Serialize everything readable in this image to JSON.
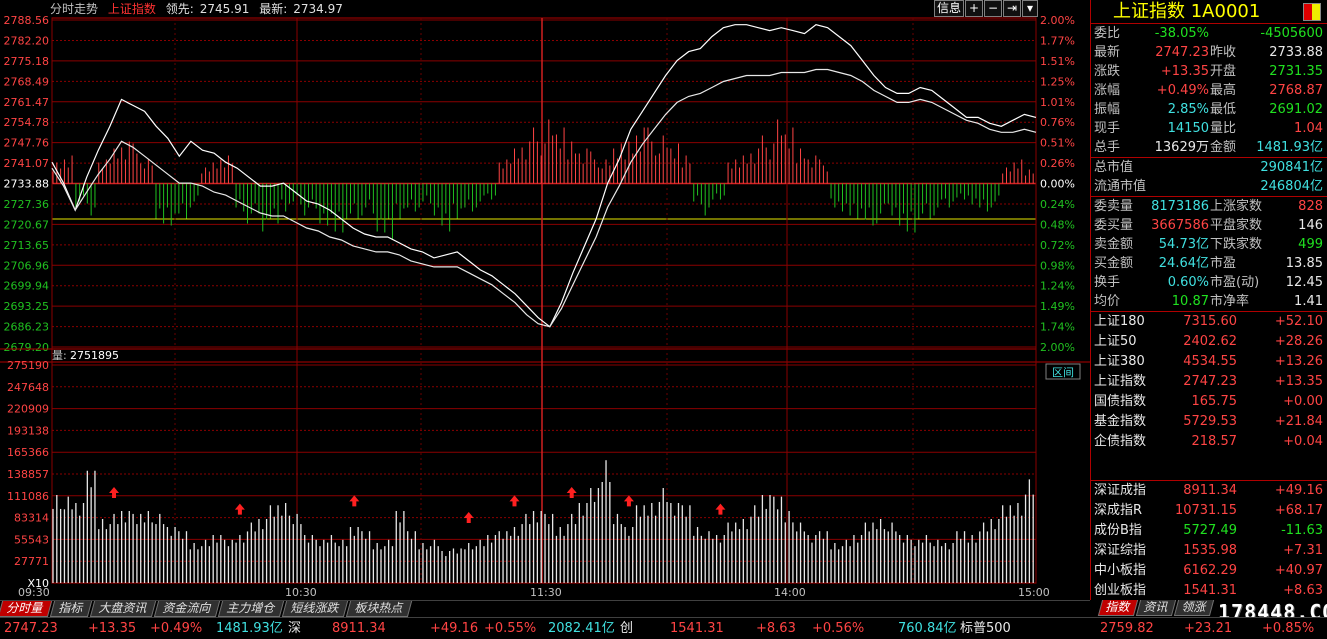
{
  "header": {
    "view": "分时走势",
    "index_name": "上证指数",
    "lead_label": "领先:",
    "lead_value": "2745.91",
    "latest_label": "最新:",
    "latest_value": "2734.97"
  },
  "toolbar": {
    "info": "信息",
    "plus": "+",
    "minus": "−",
    "arrow": "⇥",
    "menu": "▾"
  },
  "volume_header": {
    "label": "量:",
    "value": "2751895"
  },
  "interval_label": "区间",
  "price_axis": {
    "left_labels": [
      "2788.56",
      "2782.20",
      "2775.18",
      "2768.49",
      "2761.47",
      "2754.78",
      "2747.76",
      "2741.07",
      "2733.88",
      "2727.36",
      "2720.67",
      "2713.65",
      "2706.96",
      "2699.94",
      "2693.25",
      "2686.23",
      "2679.20"
    ],
    "right_labels": [
      "2.00%",
      "1.77%",
      "1.51%",
      "1.25%",
      "1.01%",
      "0.76%",
      "0.51%",
      "0.26%",
      "0.00%",
      "0.24%",
      "0.48%",
      "0.72%",
      "0.98%",
      "1.24%",
      "1.49%",
      "1.74%",
      "2.00%"
    ],
    "prev_close": 2733.88
  },
  "volume_axis": {
    "labels": [
      "275190",
      "247648",
      "220909",
      "193138",
      "165366",
      "138857",
      "111086",
      "83314",
      "55543",
      "27771",
      "X10"
    ]
  },
  "time_axis": {
    "labels": [
      "09:30",
      "10:30",
      "11:30",
      "14:00",
      "15:00"
    ]
  },
  "chart_data": {
    "type": "line",
    "series": [
      {
        "values": [
          2741,
          2734,
          2725,
          2736,
          2745,
          2753,
          2762,
          2760,
          2758,
          2753,
          2749,
          2743,
          2748,
          2745,
          2744,
          2741,
          2739,
          2736,
          2733,
          2733,
          2734,
          2731,
          2728,
          2727,
          2725,
          2722,
          2719,
          2717,
          2716,
          2716,
          2714,
          2712,
          2711,
          2709,
          2710,
          2711,
          2708,
          2705,
          2703,
          2700,
          2697,
          2693,
          2689,
          2686,
          2694,
          2704,
          2713,
          2722,
          2734,
          2742,
          2752,
          2758,
          2764,
          2770,
          2775,
          2778,
          2779,
          2783,
          2786,
          2787,
          2787,
          2786,
          2785,
          2786,
          2785,
          2784,
          2787,
          2786,
          2783,
          2780,
          2775,
          2770,
          2766,
          2764,
          2764,
          2766,
          2765,
          2762,
          2759,
          2756,
          2756,
          2754,
          2753,
          2755,
          2757,
          2756
        ]
      },
      {
        "values": [
          2739,
          2733,
          2725,
          2731,
          2737,
          2742,
          2748,
          2746,
          2743,
          2740,
          2737,
          2734,
          2734,
          2733,
          2731,
          2730,
          2728,
          2726,
          2724,
          2723,
          2723,
          2721,
          2719,
          2718,
          2716,
          2715,
          2713,
          2712,
          2711,
          2711,
          2710,
          2708,
          2707,
          2706,
          2706,
          2706,
          2704,
          2702,
          2700,
          2697,
          2694,
          2690,
          2687,
          2686,
          2692,
          2700,
          2708,
          2716,
          2726,
          2733,
          2741,
          2747,
          2752,
          2757,
          2761,
          2763,
          2764,
          2766,
          2768,
          2769,
          2770,
          2770,
          2770,
          2771,
          2771,
          2771,
          2772,
          2772,
          2771,
          2770,
          2768,
          2765,
          2763,
          2761,
          2761,
          2762,
          2761,
          2759,
          2757,
          2755,
          2754,
          2752,
          2751,
          2751,
          2752,
          2751
        ]
      }
    ],
    "ylim": [
      2679.2,
      2788.56
    ],
    "bars": [
      3,
      4,
      -3,
      -4,
      3,
      5,
      6,
      5,
      3,
      -5,
      -6,
      -5,
      -3,
      2,
      3,
      4,
      -4,
      -5,
      -6,
      -5,
      -4,
      -3,
      -4,
      -5,
      -6,
      -7,
      -5,
      -4,
      -6,
      -7,
      -5,
      -4,
      -3,
      -4,
      -6,
      -5,
      -4,
      -3,
      -2,
      3,
      5,
      6,
      7,
      8,
      7,
      6,
      5,
      4,
      3,
      5,
      6,
      8,
      7,
      6,
      5,
      4,
      -3,
      -4,
      -2,
      3,
      4,
      5,
      6,
      8,
      7,
      5,
      4,
      3,
      -3,
      -4,
      -5,
      -6,
      -5,
      -4,
      -6,
      -7,
      -5,
      -4,
      -3,
      -2,
      -3,
      -4,
      -3,
      2,
      3,
      2
    ],
    "volumes": [
      11,
      10,
      10,
      13,
      8,
      8,
      9,
      8,
      9,
      8,
      7,
      6,
      5,
      5,
      6,
      5,
      6,
      7,
      8,
      9,
      10,
      8,
      6,
      5,
      6,
      5,
      7,
      6,
      5,
      5,
      9,
      6,
      5,
      5,
      4,
      4,
      5,
      5,
      6,
      6,
      7,
      8,
      9,
      8,
      7,
      8,
      10,
      11,
      15,
      8,
      7,
      9,
      10,
      11,
      10,
      9,
      7,
      6,
      6,
      7,
      8,
      9,
      11,
      10,
      9,
      7,
      6,
      6,
      5,
      5,
      6,
      7,
      8,
      7,
      6,
      5,
      6,
      5,
      5,
      6,
      6,
      7,
      8,
      9,
      10,
      12
    ],
    "volume_arrows": [
      5,
      16,
      26,
      36,
      40,
      45,
      50,
      58
    ]
  },
  "panel": {
    "title": "上证指数 1A0001",
    "rows1": [
      {
        "l1": "委比",
        "v1": "-38.05%",
        "v1c": "green",
        "l2": "",
        "v2": "-4505600",
        "v2c": "green"
      },
      {
        "l1": "最新",
        "v1": "2747.23",
        "v1c": "red",
        "l2": "昨收",
        "v2": "2733.88",
        "v2c": "white"
      },
      {
        "l1": "涨跌",
        "v1": "+13.35",
        "v1c": "red",
        "l2": "开盘",
        "v2": "2731.35",
        "v2c": "green"
      },
      {
        "l1": "涨幅",
        "v1": "+0.49%",
        "v1c": "red",
        "l2": "最高",
        "v2": "2768.87",
        "v2c": "red"
      },
      {
        "l1": "振幅",
        "v1": "2.85%",
        "v1c": "cyan",
        "l2": "最低",
        "v2": "2691.02",
        "v2c": "green"
      },
      {
        "l1": "现手",
        "v1": "14150",
        "v1c": "cyan",
        "l2": "量比",
        "v2": "1.04",
        "v2c": "red"
      },
      {
        "l1": "总手",
        "v1": "13629万",
        "v1c": "white",
        "l2": "金额",
        "v2": "1481.93亿",
        "v2c": "cyan"
      }
    ],
    "rows2": [
      {
        "l1": "总市值",
        "v1": "290841亿",
        "v1c": "cyan"
      },
      {
        "l1": "流通市值",
        "v1": "246804亿",
        "v1c": "cyan"
      }
    ],
    "rows3": [
      {
        "l1": "委卖量",
        "v1": "8173186",
        "v1c": "cyan",
        "l2": "上涨家数",
        "v2": "828",
        "v2c": "red"
      },
      {
        "l1": "委买量",
        "v1": "3667586",
        "v1c": "red",
        "l2": "平盘家数",
        "v2": "146",
        "v2c": "white"
      },
      {
        "l1": "卖金额",
        "v1": "54.73亿",
        "v1c": "cyan",
        "l2": "下跌家数",
        "v2": "499",
        "v2c": "green"
      },
      {
        "l1": "买金额",
        "v1": "24.64亿",
        "v1c": "cyan",
        "l2": "市盈",
        "v2": "13.85",
        "v2c": "white"
      },
      {
        "l1": "换手",
        "v1": "0.60%",
        "v1c": "cyan",
        "l2": "市盈(动)",
        "v2": "12.45",
        "v2c": "white"
      },
      {
        "l1": "均价",
        "v1": "10.87",
        "v1c": "green",
        "l2": "市净率",
        "v2": "1.41",
        "v2c": "white"
      }
    ],
    "indices": [
      {
        "name": "上证180",
        "price": "7315.60",
        "change": "+52.10"
      },
      {
        "name": "上证50",
        "price": "2402.62",
        "change": "+28.26"
      },
      {
        "name": "上证380",
        "price": "4534.55",
        "change": "+13.26"
      },
      {
        "name": "上证指数",
        "price": "2747.23",
        "change": "+13.35"
      },
      {
        "name": "国债指数",
        "price": "165.75",
        "change": "+0.00"
      },
      {
        "name": "基金指数",
        "price": "5729.53",
        "change": "+21.84"
      },
      {
        "name": "企债指数",
        "price": "218.57",
        "change": "+0.04"
      }
    ],
    "indices2": [
      {
        "name": "深证成指",
        "price": "8911.34",
        "change": "+49.16",
        "pc": "red"
      },
      {
        "name": "深成指R",
        "price": "10731.15",
        "change": "+68.17",
        "pc": "red"
      },
      {
        "name": "成份B指",
        "price": "5727.49",
        "change": "-11.63",
        "pc": "green"
      },
      {
        "name": "深证综指",
        "price": "1535.98",
        "change": "+7.31",
        "pc": "red"
      },
      {
        "name": "中小板指",
        "price": "6162.29",
        "change": "+40.97",
        "pc": "red"
      },
      {
        "name": "创业板指",
        "price": "1541.31",
        "change": "+8.63",
        "pc": "red"
      }
    ]
  },
  "tabs": [
    "分时量",
    "指标",
    "大盘资讯",
    "资金流向",
    "主力增仓",
    "短线涨跌",
    "板块热点"
  ],
  "right_tabs": [
    "指数",
    "资讯",
    "领涨"
  ],
  "watermark": "178448.COM",
  "status": {
    "s1": "2747.23",
    "s2": "+13.35",
    "s3": "+0.49%",
    "s4": "1481.93亿",
    "s5": "深",
    "s6": "8911.34",
    "s7": "+49.16",
    "s8": "+0.55%",
    "s9": "2082.41亿",
    "s10": "创",
    "s11": "1541.31",
    "s12": "+8.63",
    "s13": "+0.56%",
    "s14": "760.84亿",
    "s15": "标普500",
    "s16": "2759.82",
    "s17": "+23.21",
    "s18": "+0.85%"
  }
}
